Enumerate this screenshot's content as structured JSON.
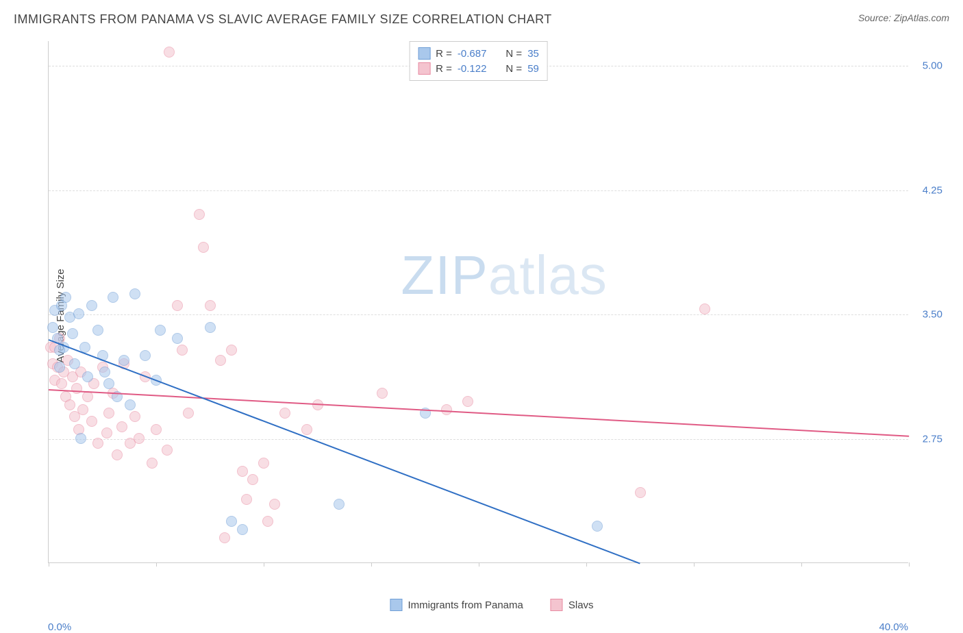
{
  "header": {
    "title": "IMMIGRANTS FROM PANAMA VS SLAVIC AVERAGE FAMILY SIZE CORRELATION CHART",
    "source_prefix": "Source: ",
    "source_name": "ZipAtlas.com"
  },
  "watermark": {
    "part1": "ZIP",
    "part2": "atlas"
  },
  "chart": {
    "type": "scatter",
    "ylabel": "Average Family Size",
    "xlim": [
      0,
      40
    ],
    "ylim": [
      2.0,
      5.15
    ],
    "yticks": [
      2.75,
      3.5,
      4.25,
      5.0
    ],
    "ytick_labels": [
      "2.75",
      "3.50",
      "4.25",
      "5.00"
    ],
    "xticks_minor": [
      0,
      5,
      10,
      15,
      20,
      25,
      30,
      35,
      40
    ],
    "xtick_labels": [
      {
        "pos": 0,
        "text": "0.0%"
      },
      {
        "pos": 40,
        "text": "40.0%"
      }
    ],
    "background_color": "#ffffff",
    "grid_color": "#dddddd",
    "axis_color": "#cccccc",
    "point_radius": 8,
    "point_opacity": 0.55,
    "series": [
      {
        "name": "Immigrants from Panama",
        "color_fill": "#a9c8ec",
        "color_stroke": "#6f9ed6",
        "R": "-0.687",
        "N": "35",
        "trend": {
          "x1": 0,
          "y1": 3.35,
          "x2": 27.5,
          "y2": 2.0,
          "color": "#2f6fc4",
          "width": 2
        },
        "points": [
          [
            0.2,
            3.42
          ],
          [
            0.3,
            3.52
          ],
          [
            0.4,
            3.35
          ],
          [
            0.5,
            3.18
          ],
          [
            0.6,
            3.55
          ],
          [
            0.7,
            3.3
          ],
          [
            0.8,
            3.6
          ],
          [
            1.0,
            3.48
          ],
          [
            1.1,
            3.38
          ],
          [
            1.2,
            3.2
          ],
          [
            1.4,
            3.5
          ],
          [
            1.5,
            2.75
          ],
          [
            1.7,
            3.3
          ],
          [
            1.8,
            3.12
          ],
          [
            2.0,
            3.55
          ],
          [
            2.3,
            3.4
          ],
          [
            2.5,
            3.25
          ],
          [
            2.6,
            3.15
          ],
          [
            2.8,
            3.08
          ],
          [
            3.0,
            3.6
          ],
          [
            3.2,
            3.0
          ],
          [
            3.5,
            3.22
          ],
          [
            3.8,
            2.95
          ],
          [
            4.0,
            3.62
          ],
          [
            4.5,
            3.25
          ],
          [
            5.0,
            3.1
          ],
          [
            5.2,
            3.4
          ],
          [
            6.0,
            3.35
          ],
          [
            7.5,
            3.42
          ],
          [
            8.5,
            2.25
          ],
          [
            9.0,
            2.2
          ],
          [
            13.5,
            2.35
          ],
          [
            17.5,
            2.9
          ],
          [
            25.5,
            2.22
          ],
          [
            0.5,
            3.28
          ]
        ]
      },
      {
        "name": "Slavs",
        "color_fill": "#f4c4cf",
        "color_stroke": "#e88ba2",
        "R": "-0.122",
        "N": "59",
        "trend": {
          "x1": 0,
          "y1": 3.05,
          "x2": 40,
          "y2": 2.77,
          "color": "#e05a84",
          "width": 2
        },
        "points": [
          [
            0.1,
            3.3
          ],
          [
            0.2,
            3.2
          ],
          [
            0.3,
            3.1
          ],
          [
            0.4,
            3.18
          ],
          [
            0.5,
            3.35
          ],
          [
            0.6,
            3.08
          ],
          [
            0.7,
            3.15
          ],
          [
            0.8,
            3.0
          ],
          [
            0.9,
            3.22
          ],
          [
            1.0,
            2.95
          ],
          [
            1.1,
            3.12
          ],
          [
            1.2,
            2.88
          ],
          [
            1.3,
            3.05
          ],
          [
            1.4,
            2.8
          ],
          [
            1.5,
            3.15
          ],
          [
            1.6,
            2.92
          ],
          [
            1.8,
            3.0
          ],
          [
            2.0,
            2.85
          ],
          [
            2.1,
            3.08
          ],
          [
            2.3,
            2.72
          ],
          [
            2.5,
            3.18
          ],
          [
            2.7,
            2.78
          ],
          [
            2.8,
            2.9
          ],
          [
            3.0,
            3.02
          ],
          [
            3.2,
            2.65
          ],
          [
            3.4,
            2.82
          ],
          [
            3.5,
            3.2
          ],
          [
            3.8,
            2.72
          ],
          [
            4.0,
            2.88
          ],
          [
            4.2,
            2.75
          ],
          [
            4.5,
            3.12
          ],
          [
            4.8,
            2.6
          ],
          [
            5.0,
            2.8
          ],
          [
            5.5,
            2.68
          ],
          [
            5.6,
            5.08
          ],
          [
            6.0,
            3.55
          ],
          [
            6.2,
            3.28
          ],
          [
            6.5,
            2.9
          ],
          [
            7.0,
            4.1
          ],
          [
            7.2,
            3.9
          ],
          [
            7.5,
            3.55
          ],
          [
            8.0,
            3.22
          ],
          [
            8.2,
            2.15
          ],
          [
            8.5,
            3.28
          ],
          [
            9.0,
            2.55
          ],
          [
            9.2,
            2.38
          ],
          [
            9.5,
            2.5
          ],
          [
            10.0,
            2.6
          ],
          [
            10.2,
            2.25
          ],
          [
            10.5,
            2.35
          ],
          [
            11.0,
            2.9
          ],
          [
            12.0,
            2.8
          ],
          [
            12.5,
            2.95
          ],
          [
            15.5,
            3.02
          ],
          [
            18.5,
            2.92
          ],
          [
            19.5,
            2.97
          ],
          [
            27.5,
            2.42
          ],
          [
            30.5,
            3.53
          ],
          [
            0.3,
            3.3
          ]
        ]
      }
    ]
  },
  "legend_bottom": [
    {
      "label": "Immigrants from Panama",
      "fill": "#a9c8ec",
      "stroke": "#6f9ed6"
    },
    {
      "label": "Slavs",
      "fill": "#f4c4cf",
      "stroke": "#e88ba2"
    }
  ]
}
